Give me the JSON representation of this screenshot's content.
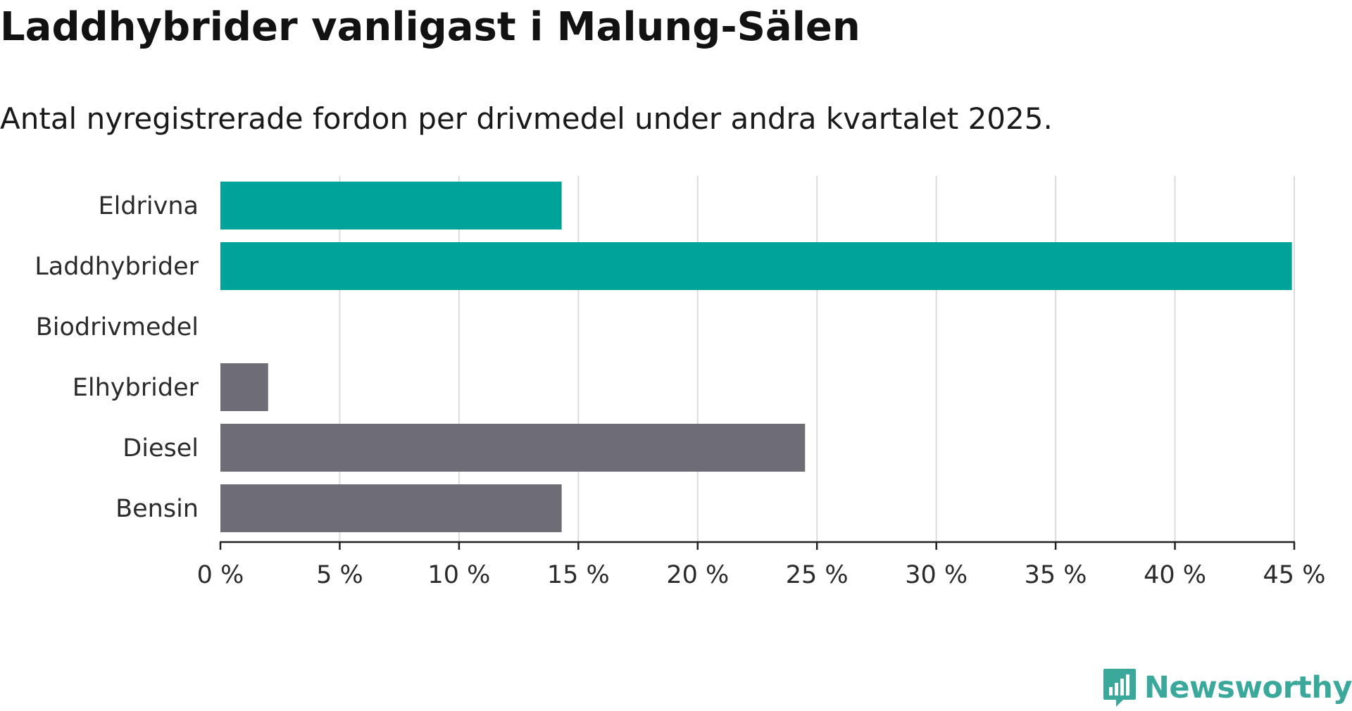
{
  "title": "Laddhybrider vanligast i Malung-Sälen",
  "subtitle": "Antal nyregistrerade fordon per drivmedel under andra kvartalet 2025.",
  "brand": {
    "name": "Newsworthy",
    "icon": "newsworthy-logo-icon",
    "color": "#3aa89b"
  },
  "colors": {
    "highlight": "#00a39a",
    "other": "#6e6d75",
    "grid": "#dcdcdc",
    "axis": "#222222"
  },
  "chart_data": {
    "type": "bar",
    "orientation": "horizontal",
    "categories": [
      "Eldrivna",
      "Laddhybrider",
      "Biodrivmedel",
      "Elhybrider",
      "Diesel",
      "Bensin"
    ],
    "values": [
      14.3,
      44.9,
      0,
      2.0,
      24.5,
      14.3
    ],
    "groups": [
      "highlight",
      "highlight",
      "other",
      "other",
      "other",
      "other"
    ],
    "xlim": [
      0,
      45
    ],
    "xticks": [
      0,
      5,
      10,
      15,
      20,
      25,
      30,
      35,
      40,
      45
    ],
    "xtick_labels": [
      "0 %",
      "5 %",
      "10 %",
      "15 %",
      "20 %",
      "25 %",
      "30 %",
      "35 %",
      "40 %",
      "45 %"
    ],
    "xlabel": "",
    "ylabel": "",
    "grid": "vertical",
    "legend": "none"
  }
}
